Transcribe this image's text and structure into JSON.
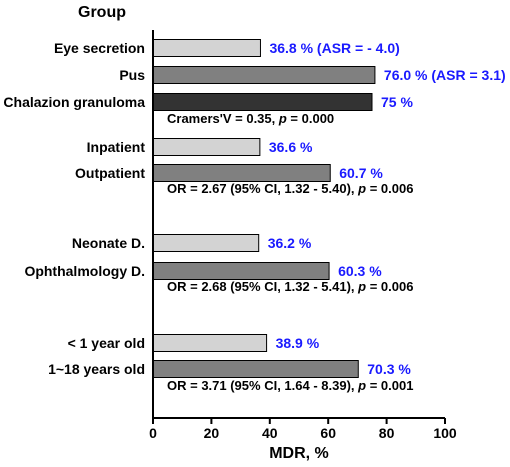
{
  "chart_data": {
    "type": "bar",
    "orientation": "horizontal",
    "title": "Group",
    "xlabel": "MDR, %",
    "xlim": [
      0,
      100
    ],
    "xticks": [
      "0",
      "20",
      "40",
      "60",
      "80",
      "100"
    ],
    "grid": false,
    "colors": {
      "light": "#d3d3d3",
      "medium": "#808080",
      "dark": "#333333",
      "value_text": "#1a1aff",
      "stat_text": "#000000"
    },
    "bars": [
      {
        "category": "Eye secretion",
        "value": 36.8,
        "label": "36.8 % (ASR = - 4.0)",
        "shade": "light"
      },
      {
        "category": "Pus",
        "value": 76.0,
        "label": "76.0 % (ASR = 3.1)",
        "shade": "medium"
      },
      {
        "category": "Chalazion granuloma",
        "value": 75,
        "label": "75 %",
        "shade": "dark"
      },
      {
        "category": "Inpatient",
        "value": 36.6,
        "label": "36.6 %",
        "shade": "light"
      },
      {
        "category": "Outpatient",
        "value": 60.7,
        "label": "60.7 %",
        "shade": "medium"
      },
      {
        "category": "Neonate D.",
        "value": 36.2,
        "label": "36.2 %",
        "shade": "light"
      },
      {
        "category": "Ophthalmology D.",
        "value": 60.3,
        "label": "60.3 %",
        "shade": "medium"
      },
      {
        "category": "< 1 year old",
        "value": 38.9,
        "label": "38.9 %",
        "shade": "light"
      },
      {
        "category": "1~18 years old",
        "value": 70.3,
        "label": "70.3 %",
        "shade": "medium"
      }
    ],
    "annotations": [
      {
        "after_bar": 2,
        "text": "Cramers'V = 0.35, p = 0.000"
      },
      {
        "after_bar": 4,
        "text": "OR = 2.67 (95% CI, 1.32 - 5.40), p = 0.006"
      },
      {
        "after_bar": 6,
        "text": "OR = 2.68 (95% CI, 1.32 - 5.41), p = 0.006"
      },
      {
        "after_bar": 8,
        "text": "OR = 3.71 (95% CI, 1.64 - 8.39), p = 0.001"
      }
    ]
  }
}
